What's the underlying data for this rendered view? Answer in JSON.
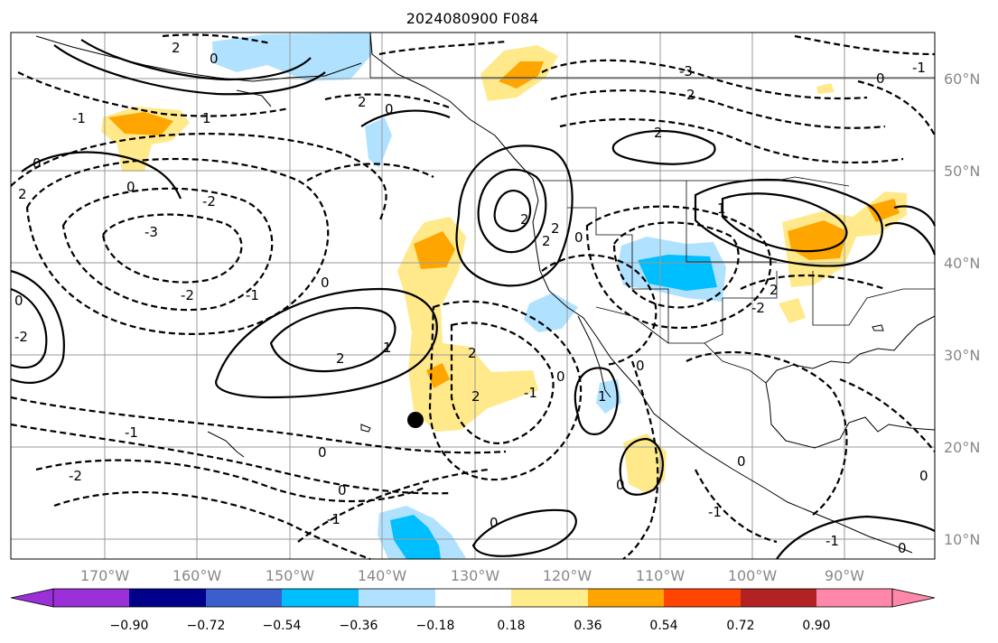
{
  "title": "2024080900 F084",
  "lon_labels": [
    "170°W",
    "160°W",
    "150°W",
    "140°W",
    "130°W",
    "120°W",
    "110°W",
    "100°W",
    "90°W"
  ],
  "lat_labels": [
    "60°N",
    "50°N",
    "40°N",
    "30°N",
    "20°N",
    "10°N"
  ],
  "colorbar": {
    "ticks": [
      "−0.90",
      "−0.72",
      "−0.54",
      "−0.36",
      "−0.18",
      "0.18",
      "0.36",
      "0.54",
      "0.72",
      "0.90"
    ],
    "colors": [
      "#9b30d8",
      "#00008b",
      "#3a5fcd",
      "#00bfff",
      "#b0e2ff",
      "#ffffff",
      "#ffec8b",
      "#ffa500",
      "#ff4500",
      "#b22222",
      "#ff88aa"
    ]
  },
  "contour_labels": [
    "2",
    "1",
    "0",
    "-1",
    "-2",
    "-3"
  ],
  "marker": {
    "lat": 23,
    "lon": -135
  },
  "colors": {
    "warm_light": "#ffe98a",
    "warm_mid": "#ffa500",
    "cool_light": "#b0e2ff",
    "cool_mid": "#00bfff"
  }
}
